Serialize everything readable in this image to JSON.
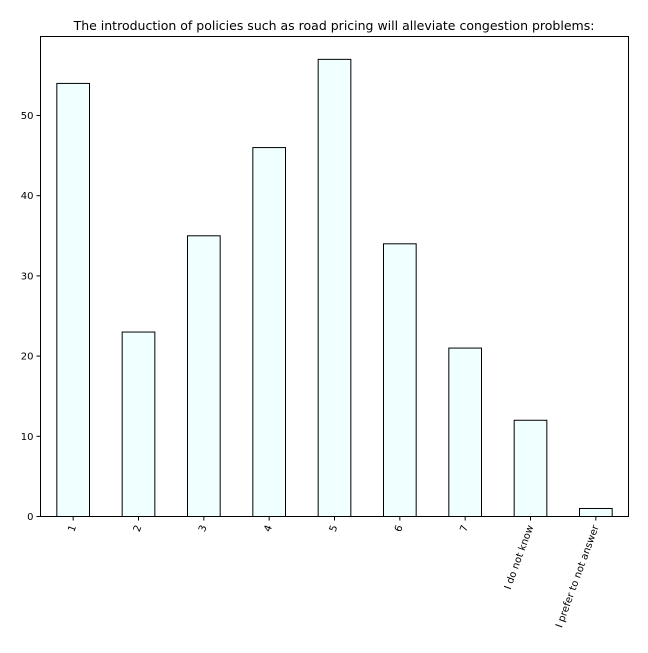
{
  "chart_data": {
    "type": "bar",
    "title": "The introduction of policies such as road pricing will alleviate congestion problems:",
    "xlabel": "",
    "ylabel": "",
    "categories": [
      "1",
      "2",
      "3",
      "4",
      "5",
      "6",
      "7",
      "I do not know",
      "I prefer to not answer"
    ],
    "values": [
      54,
      23,
      35,
      46,
      57,
      34,
      21,
      12,
      1
    ],
    "ylim": [
      0,
      59.85
    ],
    "yticks": [
      0,
      10,
      20,
      30,
      40,
      50
    ],
    "grid": false,
    "legend": "none",
    "bar_fill": "#f0ffff",
    "bar_edge": "#000000",
    "x_tick_rotation_deg": 70
  }
}
